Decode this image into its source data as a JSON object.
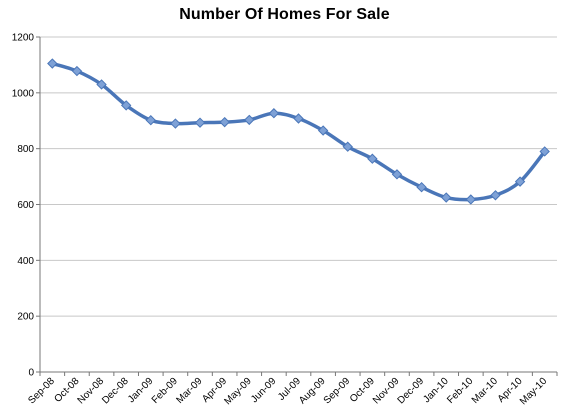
{
  "chart_data": {
    "type": "line",
    "title": "Number Of Homes For Sale",
    "xlabel": "",
    "ylabel": "",
    "categories": [
      "Sep-08",
      "Oct-08",
      "Nov-08",
      "Dec-08",
      "Jan-09",
      "Feb-09",
      "Mar-09",
      "Apr-09",
      "May-09",
      "Jun-09",
      "Jul-09",
      "Aug-09",
      "Sep-09",
      "Oct-09",
      "Nov-09",
      "Dec-09",
      "Jan-10",
      "Feb-10",
      "Mar-10",
      "Apr-10",
      "May-10"
    ],
    "series": [
      {
        "name": "",
        "values": [
          1105,
          1078,
          1030,
          955,
          902,
          890,
          893,
          895,
          903,
          927,
          908,
          865,
          807,
          764,
          708,
          662,
          625,
          618,
          633,
          682,
          790
        ]
      }
    ],
    "ylim": [
      0,
      1200
    ],
    "yticks": [
      0,
      200,
      400,
      600,
      800,
      1000,
      1200
    ],
    "grid": true,
    "legend": "none",
    "colors": {
      "line": "#4a76b8",
      "marker": "#7ea1d6",
      "grid": "#c8c8c8",
      "axis": "#777777"
    }
  }
}
